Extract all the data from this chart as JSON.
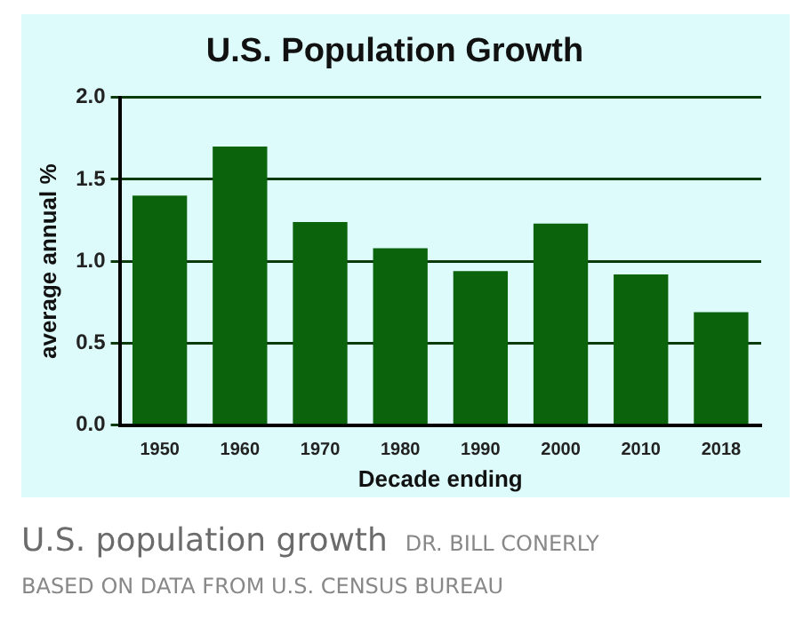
{
  "chart_data": {
    "type": "bar",
    "title": "U.S. Population Growth",
    "subtitle": "U.S. population growth",
    "xlabel": "Decade ending",
    "ylabel": "average annual %",
    "categories": [
      "1950",
      "1960",
      "1970",
      "1980",
      "1990",
      "2000",
      "2010",
      "2018"
    ],
    "values": [
      1.4,
      1.7,
      1.24,
      1.08,
      0.94,
      1.23,
      0.92,
      0.69
    ],
    "color": "#0b640b",
    "ylim": [
      0,
      2
    ],
    "yticks": [
      {
        "value": 0,
        "label": "0.0"
      },
      {
        "value": 0.5,
        "label": "0.5"
      },
      {
        "value": 1,
        "label": "1.0"
      },
      {
        "value": 1.5,
        "label": "1.5"
      },
      {
        "value": 2,
        "label": "2.0"
      }
    ],
    "grid": "y",
    "legend": false,
    "annotations": [
      "DR. BILL CONERLY",
      "BASED ON DATA FROM U.S. CENSUS BUREAU"
    ]
  }
}
